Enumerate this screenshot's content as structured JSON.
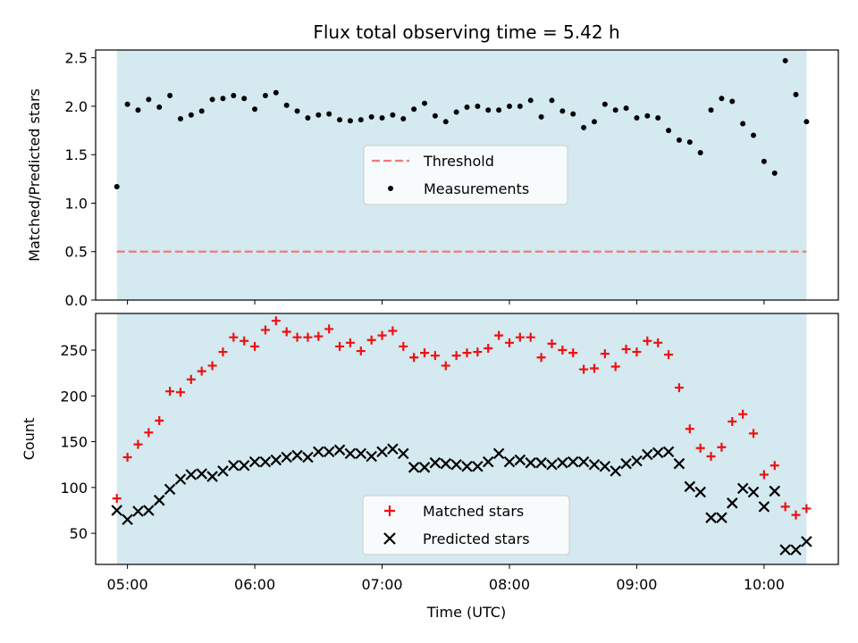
{
  "figure": {
    "title": "Flux total observing time = 5.42 h",
    "xlabel": "Time (UTC)",
    "shade_color": "#d4e9f0",
    "threshold_color": "#f07a7a",
    "matched_color": "#ee1111",
    "predicted_color": "#000000"
  },
  "chart_data": [
    {
      "type": "scatter",
      "panel": "top",
      "title": "Flux total observing time = 5.42 h",
      "xlabel": "",
      "ylabel": "Matched/Predicted stars",
      "xlim": [
        "04:45",
        "10:35"
      ],
      "ylim": [
        0,
        2.58
      ],
      "xticks": [
        "05:00",
        "06:00",
        "07:00",
        "08:00",
        "09:00",
        "10:00"
      ],
      "yticks": [
        "0.0",
        "0.5",
        "1.0",
        "1.5",
        "2.0",
        "2.5"
      ],
      "shaded_region": [
        "04:55",
        "10:20"
      ],
      "threshold": {
        "name": "Threshold",
        "value": 0.5,
        "style": "dashed"
      },
      "series": [
        {
          "name": "Measurements",
          "x": [
            "04:55",
            "05:00",
            "05:05",
            "05:10",
            "05:15",
            "05:20",
            "05:25",
            "05:30",
            "05:35",
            "05:40",
            "05:45",
            "05:50",
            "05:55",
            "06:00",
            "06:05",
            "06:10",
            "06:15",
            "06:20",
            "06:25",
            "06:30",
            "06:35",
            "06:40",
            "06:45",
            "06:50",
            "06:55",
            "07:00",
            "07:05",
            "07:10",
            "07:15",
            "07:20",
            "07:25",
            "07:30",
            "07:35",
            "07:40",
            "07:45",
            "07:50",
            "07:55",
            "08:00",
            "08:05",
            "08:10",
            "08:15",
            "08:20",
            "08:25",
            "08:30",
            "08:35",
            "08:40",
            "08:45",
            "08:50",
            "08:55",
            "09:00",
            "09:05",
            "09:10",
            "09:15",
            "09:20",
            "09:25",
            "09:30",
            "09:35",
            "09:40",
            "09:45",
            "09:50",
            "09:55",
            "10:00",
            "10:05",
            "10:10",
            "10:15",
            "10:20"
          ],
          "values": [
            1.17,
            2.02,
            1.96,
            2.07,
            1.99,
            2.11,
            1.87,
            1.91,
            1.95,
            2.07,
            2.08,
            2.11,
            2.08,
            1.97,
            2.11,
            2.14,
            2.01,
            1.95,
            1.88,
            1.91,
            1.92,
            1.86,
            1.85,
            1.86,
            1.89,
            1.88,
            1.91,
            1.87,
            1.97,
            2.03,
            1.9,
            1.84,
            1.94,
            1.99,
            2.0,
            1.96,
            1.96,
            2.0,
            2.0,
            2.06,
            1.89,
            2.06,
            1.95,
            1.92,
            1.78,
            1.84,
            2.02,
            1.96,
            1.98,
            1.88,
            1.9,
            1.88,
            1.75,
            1.65,
            1.63,
            1.52,
            1.96,
            2.08,
            2.05,
            1.82,
            1.7,
            1.43,
            1.31,
            2.47,
            2.12,
            1.84
          ]
        }
      ],
      "legend": {
        "position": "center",
        "entries": [
          "Threshold",
          "Measurements"
        ]
      }
    },
    {
      "type": "scatter",
      "panel": "bottom",
      "title": "",
      "xlabel": "Time (UTC)",
      "ylabel": "Count",
      "xlim": [
        "04:45",
        "10:35"
      ],
      "ylim": [
        16,
        290
      ],
      "xticks": [
        "05:00",
        "06:00",
        "07:00",
        "08:00",
        "09:00",
        "10:00"
      ],
      "yticks": [
        "50",
        "100",
        "150",
        "200",
        "250"
      ],
      "shaded_region": [
        "04:55",
        "10:20"
      ],
      "series": [
        {
          "name": "Matched stars",
          "marker": "+",
          "x": [
            "04:55",
            "05:00",
            "05:05",
            "05:10",
            "05:15",
            "05:20",
            "05:25",
            "05:30",
            "05:35",
            "05:40",
            "05:45",
            "05:50",
            "05:55",
            "06:00",
            "06:05",
            "06:10",
            "06:15",
            "06:20",
            "06:25",
            "06:30",
            "06:35",
            "06:40",
            "06:45",
            "06:50",
            "06:55",
            "07:00",
            "07:05",
            "07:10",
            "07:15",
            "07:20",
            "07:25",
            "07:30",
            "07:35",
            "07:40",
            "07:45",
            "07:50",
            "07:55",
            "08:00",
            "08:05",
            "08:10",
            "08:15",
            "08:20",
            "08:25",
            "08:30",
            "08:35",
            "08:40",
            "08:45",
            "08:50",
            "08:55",
            "09:00",
            "09:05",
            "09:10",
            "09:15",
            "09:20",
            "09:25",
            "09:30",
            "09:35",
            "09:40",
            "09:45",
            "09:50",
            "09:55",
            "10:00",
            "10:05",
            "10:10",
            "10:15",
            "10:20"
          ],
          "values": [
            88,
            133,
            147,
            160,
            173,
            205,
            204,
            218,
            227,
            233,
            248,
            264,
            260,
            254,
            272,
            282,
            270,
            264,
            264,
            265,
            273,
            254,
            258,
            249,
            261,
            266,
            271,
            254,
            242,
            247,
            244,
            233,
            244,
            247,
            248,
            252,
            266,
            258,
            264,
            264,
            242,
            257,
            250,
            247,
            229,
            230,
            246,
            232,
            251,
            248,
            260,
            258,
            245,
            209,
            164,
            143,
            134,
            144,
            172,
            180,
            159,
            114,
            124,
            79,
            70,
            77
          ]
        },
        {
          "name": "Predicted stars",
          "marker": "x",
          "x": [
            "04:55",
            "05:00",
            "05:05",
            "05:10",
            "05:15",
            "05:20",
            "05:25",
            "05:30",
            "05:35",
            "05:40",
            "05:45",
            "05:50",
            "05:55",
            "06:00",
            "06:05",
            "06:10",
            "06:15",
            "06:20",
            "06:25",
            "06:30",
            "06:35",
            "06:40",
            "06:45",
            "06:50",
            "06:55",
            "07:00",
            "07:05",
            "07:10",
            "07:15",
            "07:20",
            "07:25",
            "07:30",
            "07:35",
            "07:40",
            "07:45",
            "07:50",
            "07:55",
            "08:00",
            "08:05",
            "08:10",
            "08:15",
            "08:20",
            "08:25",
            "08:30",
            "08:35",
            "08:40",
            "08:45",
            "08:50",
            "08:55",
            "09:00",
            "09:05",
            "09:10",
            "09:15",
            "09:20",
            "09:25",
            "09:30",
            "09:35",
            "09:40",
            "09:45",
            "09:50",
            "09:55",
            "10:00",
            "10:05",
            "10:10",
            "10:15",
            "10:20"
          ],
          "values": [
            75,
            65,
            74,
            75,
            86,
            98,
            109,
            114,
            115,
            112,
            118,
            124,
            124,
            128,
            128,
            130,
            133,
            135,
            133,
            139,
            139,
            141,
            137,
            137,
            134,
            139,
            142,
            137,
            122,
            122,
            127,
            126,
            125,
            123,
            123,
            128,
            137,
            128,
            130,
            127,
            127,
            125,
            127,
            128,
            128,
            125,
            123,
            118,
            126,
            129,
            136,
            138,
            139,
            126,
            101,
            95,
            67,
            67,
            83,
            99,
            95,
            79,
            96,
            32,
            32,
            41
          ]
        }
      ],
      "legend": {
        "position": "lower center",
        "entries": [
          "Matched stars",
          "Predicted stars"
        ]
      }
    }
  ]
}
